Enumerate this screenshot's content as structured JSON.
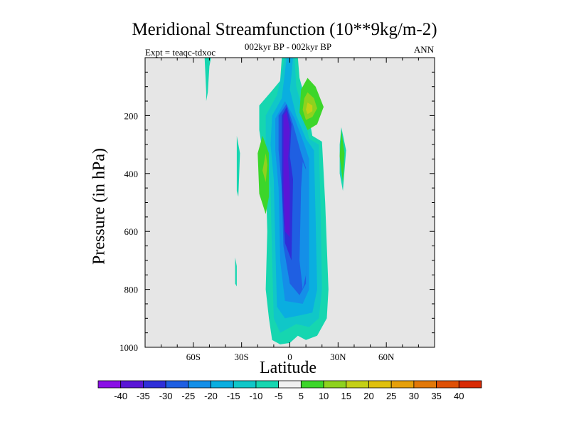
{
  "chart_data": {
    "type": "heatmap",
    "title": "Meridional Streamfunction (10**9kg/m-2)",
    "subtitle_center": "002kyr BP - 002kyr BP",
    "subtitle_left": "Expt = teaqc-tdxoc",
    "subtitle_right": "ANN",
    "xlabel": "Latitude",
    "ylabel": "Pressure (in hPa)",
    "xlim": [
      -90,
      90
    ],
    "ylim": [
      1000,
      0
    ],
    "x_ticks": [
      {
        "value": -60,
        "label": "60S"
      },
      {
        "value": -30,
        "label": "30S"
      },
      {
        "value": 0,
        "label": "0"
      },
      {
        "value": 30,
        "label": "30N"
      },
      {
        "value": 60,
        "label": "60N"
      }
    ],
    "y_ticks": [
      {
        "value": 200,
        "label": "200"
      },
      {
        "value": 400,
        "label": "400"
      },
      {
        "value": 600,
        "label": "600"
      },
      {
        "value": 800,
        "label": "800"
      },
      {
        "value": 1000,
        "label": "1000"
      }
    ],
    "colorbar": {
      "labels": [
        "-40",
        "-35",
        "-30",
        "-25",
        "-20",
        "-15",
        "-10",
        "-5",
        "5",
        "10",
        "15",
        "20",
        "25",
        "30",
        "35",
        "40"
      ],
      "colors": [
        "#8a0fe6",
        "#5a16d6",
        "#2f2fd8",
        "#1f5fe2",
        "#148fe8",
        "#0aaee0",
        "#10c7c8",
        "#16d6b0",
        "#f0f0f0",
        "#3cd62a",
        "#8ed21e",
        "#c4d016",
        "#e0c00e",
        "#e6a00a",
        "#e27808",
        "#de5006",
        "#d82a04"
      ]
    },
    "contour_regions": [
      {
        "level": -5,
        "pts": [
          [
            -5,
            0
          ],
          [
            5,
            0
          ],
          [
            6,
            70
          ],
          [
            10,
            150
          ],
          [
            14,
            270
          ],
          [
            20,
            290
          ],
          [
            22,
            500
          ],
          [
            24,
            800
          ],
          [
            23,
            900
          ],
          [
            17,
            960
          ],
          [
            10,
            975
          ],
          [
            5,
            960
          ],
          [
            0,
            985
          ],
          [
            -6,
            990
          ],
          [
            -11,
            975
          ],
          [
            -13,
            900
          ],
          [
            -15,
            800
          ],
          [
            -14,
            600
          ],
          [
            -15,
            400
          ],
          [
            -19,
            250
          ],
          [
            -19,
            165
          ],
          [
            -12,
            120
          ],
          [
            -6,
            80
          ]
        ]
      },
      {
        "level": -10,
        "pts": [
          [
            -3,
            0
          ],
          [
            3,
            0
          ],
          [
            4,
            100
          ],
          [
            8,
            180
          ],
          [
            12,
            280
          ],
          [
            18,
            300
          ],
          [
            19,
            500
          ],
          [
            20,
            800
          ],
          [
            18,
            900
          ],
          [
            12,
            930
          ],
          [
            4,
            920
          ],
          [
            -6,
            950
          ],
          [
            -10,
            900
          ],
          [
            -11,
            700
          ],
          [
            -12,
            450
          ],
          [
            -15,
            300
          ],
          [
            -15,
            200
          ],
          [
            -8,
            130
          ]
        ]
      },
      {
        "level": -15,
        "pts": [
          [
            -2,
            0
          ],
          [
            2,
            0
          ],
          [
            1,
            60
          ],
          [
            0,
            110
          ],
          [
            4,
            200
          ],
          [
            10,
            280
          ],
          [
            15,
            320
          ],
          [
            16,
            550
          ],
          [
            17,
            800
          ],
          [
            14,
            880
          ],
          [
            6,
            890
          ],
          [
            -3,
            900
          ],
          [
            -8,
            860
          ],
          [
            -9,
            650
          ],
          [
            -10,
            420
          ],
          [
            -12,
            300
          ],
          [
            -11,
            200
          ],
          [
            -5,
            140
          ]
        ]
      },
      {
        "level": -20,
        "pts": [
          [
            -3,
            150
          ],
          [
            3,
            210
          ],
          [
            9,
            300
          ],
          [
            12,
            350
          ],
          [
            12,
            800
          ],
          [
            8,
            850
          ],
          [
            -3,
            840
          ],
          [
            -6,
            700
          ],
          [
            -7,
            450
          ],
          [
            -9,
            320
          ],
          [
            -9,
            210
          ]
        ]
      },
      {
        "level": -25,
        "pts": [
          [
            -2,
            160
          ],
          [
            2,
            230
          ],
          [
            7,
            330
          ],
          [
            10,
            380
          ],
          [
            10,
            780
          ],
          [
            6,
            820
          ],
          [
            0,
            780
          ],
          [
            -4,
            650
          ],
          [
            -5,
            450
          ],
          [
            -7,
            320
          ],
          [
            -7,
            200
          ]
        ]
      },
      {
        "level": -30,
        "pts": [
          [
            -2,
            170
          ],
          [
            1,
            230
          ],
          [
            0,
            340
          ],
          [
            2,
            420
          ],
          [
            1,
            700
          ],
          [
            -3,
            640
          ],
          [
            -5,
            450
          ],
          [
            -5,
            300
          ],
          [
            -5,
            200
          ]
        ]
      },
      {
        "level": -35,
        "pts": [
          [
            -2,
            185
          ],
          [
            0,
            250
          ],
          [
            -1,
            350
          ],
          [
            0,
            450
          ],
          [
            0,
            620
          ],
          [
            -3,
            600
          ],
          [
            -4,
            450
          ],
          [
            -4,
            300
          ],
          [
            -4,
            200
          ]
        ]
      },
      {
        "level": -20,
        "pts": [
          [
            8,
            360
          ],
          [
            11,
            400
          ],
          [
            10,
            750
          ],
          [
            8,
            800
          ],
          [
            6,
            700
          ],
          [
            7,
            450
          ]
        ]
      },
      {
        "level": -5,
        "pts": [
          [
            -53,
            0
          ],
          [
            -49,
            0
          ],
          [
            -50,
            30
          ],
          [
            -51,
            120
          ],
          [
            -52,
            150
          ],
          [
            -52,
            120
          ]
        ]
      },
      {
        "level": -5,
        "pts": [
          [
            -33,
            270
          ],
          [
            -31,
            330
          ],
          [
            -32,
            480
          ],
          [
            -33,
            460
          ]
        ]
      },
      {
        "level": -5,
        "pts": [
          [
            -34,
            690
          ],
          [
            -33,
            720
          ],
          [
            -33,
            790
          ],
          [
            -34,
            780
          ]
        ]
      },
      {
        "level": -5,
        "pts": [
          [
            32,
            240
          ],
          [
            35,
            320
          ],
          [
            33,
            460
          ],
          [
            31,
            400
          ],
          [
            31,
            300
          ]
        ]
      },
      {
        "level": 5,
        "pts": [
          [
            -17,
            270
          ],
          [
            -13,
            330
          ],
          [
            -13,
            480
          ],
          [
            -15,
            540
          ],
          [
            -19,
            470
          ],
          [
            -20,
            330
          ]
        ]
      },
      {
        "level": 5,
        "pts": [
          [
            32,
            250
          ],
          [
            34,
            330
          ],
          [
            33,
            430
          ],
          [
            31,
            340
          ]
        ]
      },
      {
        "level": 5,
        "pts": [
          [
            11,
            70
          ],
          [
            16,
            100
          ],
          [
            21,
            170
          ],
          [
            17,
            230
          ],
          [
            11,
            250
          ],
          [
            6,
            190
          ],
          [
            7,
            110
          ]
        ]
      },
      {
        "level": 10,
        "pts": [
          [
            11,
            120
          ],
          [
            15,
            140
          ],
          [
            17,
            175
          ],
          [
            14,
            205
          ],
          [
            10,
            215
          ],
          [
            8,
            180
          ],
          [
            9,
            140
          ]
        ]
      },
      {
        "level": 10,
        "pts": [
          [
            -15,
            330
          ],
          [
            -14,
            370
          ],
          [
            -15,
            430
          ],
          [
            -17,
            390
          ]
        ]
      },
      {
        "level": 15,
        "pts": [
          [
            11,
            155
          ],
          [
            14,
            165
          ],
          [
            14,
            185
          ],
          [
            11,
            195
          ],
          [
            10,
            180
          ]
        ]
      }
    ]
  }
}
